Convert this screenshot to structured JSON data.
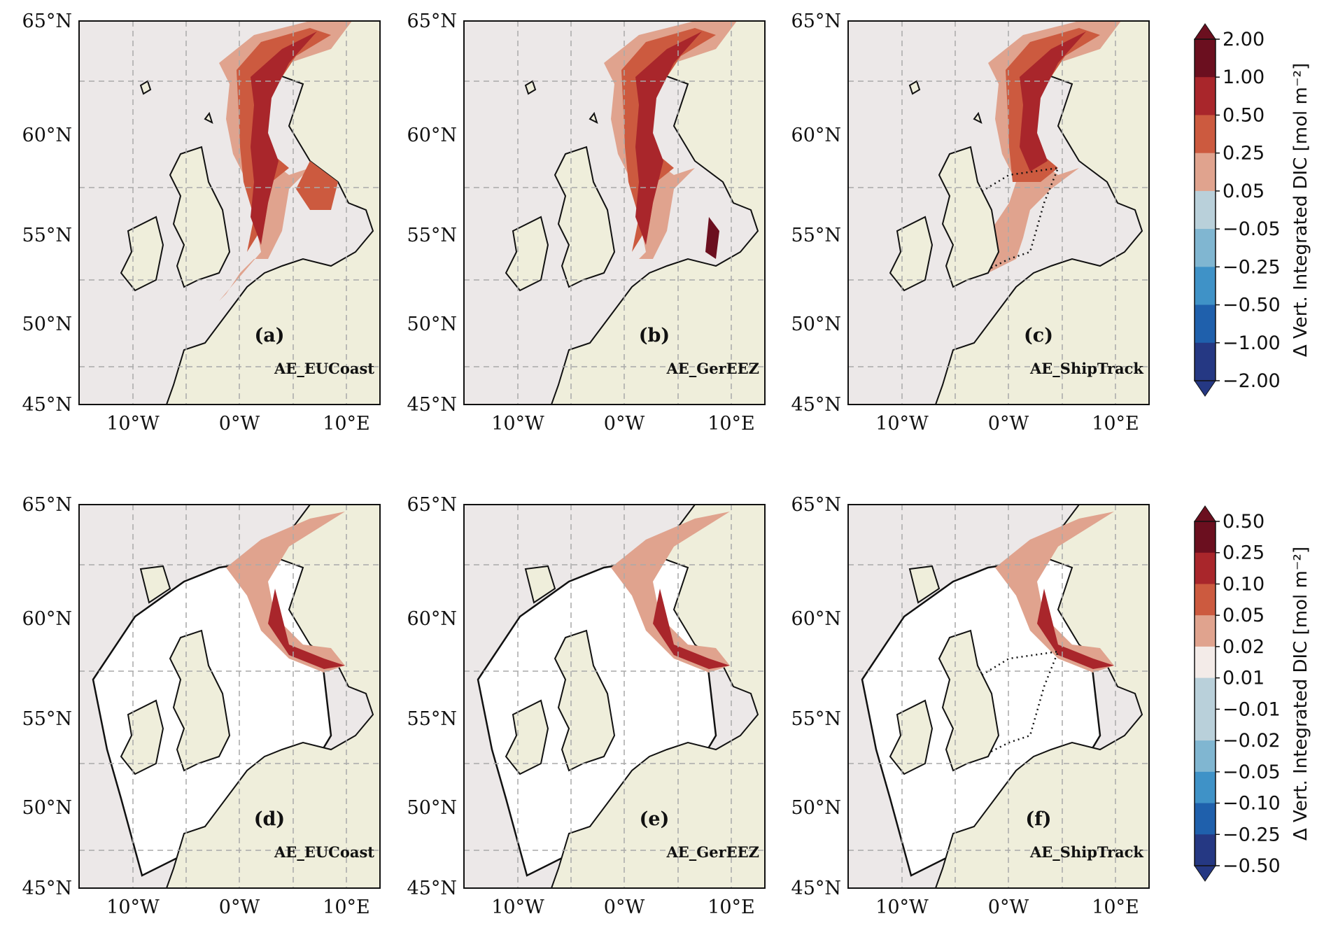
{
  "figure": {
    "lat_ticks": [
      "65°N",
      "60°N",
      "55°N",
      "50°N",
      "45°N"
    ],
    "lon_ticks": [
      "10°W",
      "0°W",
      "10°E"
    ]
  },
  "panels": [
    {
      "letter": "(a)",
      "name": "AE_EUCoast",
      "row": "top"
    },
    {
      "letter": "(b)",
      "name": "AE_GerEEZ",
      "row": "top"
    },
    {
      "letter": "(c)",
      "name": "AE_ShipTrack",
      "row": "top"
    },
    {
      "letter": "(d)",
      "name": "AE_EUCoast",
      "row": "bottom"
    },
    {
      "letter": "(e)",
      "name": "AE_GerEEZ",
      "row": "bottom"
    },
    {
      "letter": "(f)",
      "name": "AE_ShipTrack",
      "row": "bottom"
    }
  ],
  "colorbars": [
    {
      "label": "Δ Vert. Integrated DIC [mol m⁻²]",
      "ticks": [
        "2.00",
        "1.00",
        "0.50",
        "0.25",
        "0.05",
        "−0.05",
        "−0.25",
        "−0.50",
        "−1.00",
        "−2.00"
      ]
    },
    {
      "label": "Δ Vert. Integrated DIC [mol m⁻²]",
      "ticks": [
        "0.50",
        "0.25",
        "0.10",
        "0.05",
        "0.02",
        "0.01",
        "−0.01",
        "−0.02",
        "−0.05",
        "−0.10",
        "−0.25",
        "−0.50"
      ]
    }
  ],
  "colors": {
    "ocean": "#ece8e8",
    "land": "#efeedb",
    "cmap": [
      "#6b0f1f",
      "#a9262b",
      "#cc5a3f",
      "#e0a38e",
      "#f3ebe8",
      "#b9d0da",
      "#80b6d1",
      "#3f92c7",
      "#1f60ac",
      "#253883"
    ]
  },
  "chart_data": {
    "type": "heatmap",
    "extent": {
      "lon": [
        -15,
        13
      ],
      "lat": [
        45,
        65
      ]
    },
    "rows": 2,
    "cols": 3
  }
}
